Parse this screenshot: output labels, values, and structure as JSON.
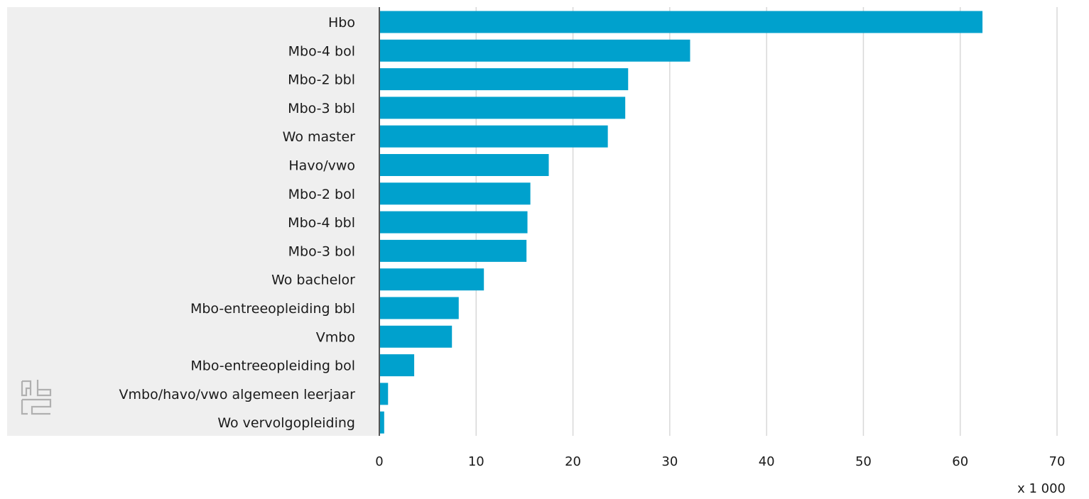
{
  "chart_data": {
    "type": "bar",
    "orientation": "horizontal",
    "categories": [
      "Hbo",
      "Mbo-4 bol",
      "Mbo-2 bbl",
      "Mbo-3 bbl",
      "Wo master",
      "Havo/vwo",
      "Mbo-2 bol",
      "Mbo-4 bbl",
      "Mbo-3 bol",
      "Wo bachelor",
      "Mbo-entreeopleiding bbl",
      "Vmbo",
      "Mbo-entreeopleiding bol",
      "Vmbo/havo/vwo algemeen leerjaar",
      "Wo vervolgopleiding"
    ],
    "values": [
      62.3,
      32.1,
      25.7,
      25.4,
      23.6,
      17.5,
      15.6,
      15.3,
      15.2,
      10.8,
      8.2,
      7.5,
      3.6,
      0.9,
      0.5
    ],
    "xlim": [
      0,
      70
    ],
    "xticks": [
      "0",
      "10",
      "20",
      "30",
      "40",
      "50",
      "60",
      "70"
    ],
    "unit_label": "x 1 000",
    "grid": true,
    "bar_color": "#00a1cd",
    "label_panel_color": "#efefef"
  },
  "logo": {
    "name": "cbs-logo",
    "text": "cbs"
  }
}
